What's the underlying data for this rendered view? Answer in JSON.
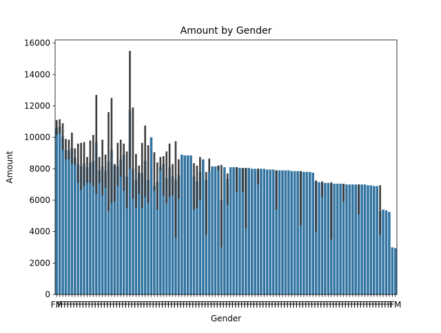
{
  "chart_data": {
    "type": "bar",
    "title": "Amount by Gender",
    "xlabel": "Gender",
    "ylabel": "Amount",
    "ylim": [
      0,
      16200
    ],
    "yticks": [
      0,
      2000,
      4000,
      6000,
      8000,
      10000,
      12000,
      14000,
      16000
    ],
    "grid": false,
    "legend": "none",
    "bar_color": "#3274a1",
    "errorbar_color": "#3b3b3b",
    "tick_label_prefix": "FM",
    "tick_label_suffix": "FM",
    "bars": [
      {
        "value": 10600,
        "err": [
          10150,
          11100
        ]
      },
      {
        "value": 10700,
        "err": [
          10250,
          11150
        ]
      },
      {
        "value": 10050,
        "err": [
          9200,
          10900
        ]
      },
      {
        "value": 9200,
        "err": [
          8600,
          9900
        ]
      },
      {
        "value": 9150,
        "err": [
          8600,
          9850
        ]
      },
      {
        "value": 9300,
        "err": [
          8300,
          10300
        ]
      },
      {
        "value": 8700,
        "err": [
          8250,
          9300
        ]
      },
      {
        "value": 8300,
        "err": [
          7100,
          9600
        ]
      },
      {
        "value": 8150,
        "err": [
          6650,
          9650
        ]
      },
      {
        "value": 8350,
        "err": [
          6900,
          9700
        ]
      },
      {
        "value": 8100,
        "err": [
          7100,
          8750
        ]
      },
      {
        "value": 8400,
        "err": [
          7100,
          9800
        ]
      },
      {
        "value": 8500,
        "err": [
          6900,
          10150
        ]
      },
      {
        "value": 9700,
        "err": [
          6400,
          12700
        ]
      },
      {
        "value": 7900,
        "err": [
          7100,
          8750
        ]
      },
      {
        "value": 8150,
        "err": [
          6300,
          9850
        ]
      },
      {
        "value": 7850,
        "err": [
          6800,
          8900
        ]
      },
      {
        "value": 8450,
        "err": [
          5300,
          11600
        ]
      },
      {
        "value": 9200,
        "err": [
          5800,
          12500
        ]
      },
      {
        "value": 8200,
        "err": [
          5900,
          8300
        ]
      },
      {
        "value": 8150,
        "err": [
          6900,
          9650
        ]
      },
      {
        "value": 8600,
        "err": [
          7500,
          9850
        ]
      },
      {
        "value": 8900,
        "err": [
          6600,
          9600
        ]
      },
      {
        "value": 7500,
        "err": [
          5500,
          9100
        ]
      },
      {
        "value": 11750,
        "err": [
          8000,
          15500
        ]
      },
      {
        "value": 8000,
        "err": [
          6100,
          11900
        ]
      },
      {
        "value": 7300,
        "err": [
          5500,
          8950
        ]
      },
      {
        "value": 7750,
        "err": [
          6400,
          8200
        ]
      },
      {
        "value": 7700,
        "err": [
          5500,
          9650
        ]
      },
      {
        "value": 8500,
        "err": [
          6200,
          10750
        ]
      },
      {
        "value": 7300,
        "err": [
          5800,
          9500
        ]
      },
      {
        "value": 10000,
        "err": [
          10000,
          10000
        ]
      },
      {
        "value": 6900,
        "err": [
          6600,
          9050
        ]
      },
      {
        "value": 7150,
        "err": [
          5400,
          8400
        ]
      },
      {
        "value": 8100,
        "err": [
          7900,
          8750
        ]
      },
      {
        "value": 8300,
        "err": [
          6300,
          8800
        ]
      },
      {
        "value": 7400,
        "err": [
          5800,
          9100
        ]
      },
      {
        "value": 8100,
        "err": [
          6200,
          9600
        ]
      },
      {
        "value": 7500,
        "err": [
          6300,
          8300
        ]
      },
      {
        "value": 7300,
        "err": [
          3600,
          9750
        ]
      },
      {
        "value": 7600,
        "err": [
          6100,
          8600
        ]
      },
      {
        "value": 8900,
        "err": [
          8900,
          8900
        ]
      },
      {
        "value": 8850,
        "err": [
          8850,
          8850
        ]
      },
      {
        "value": 8850,
        "err": [
          8850,
          8850
        ]
      },
      {
        "value": 8850,
        "err": [
          8850,
          8850
        ]
      },
      {
        "value": 7500,
        "err": [
          5400,
          8350
        ]
      },
      {
        "value": 7200,
        "err": [
          5500,
          8200
        ]
      },
      {
        "value": 7800,
        "err": [
          6000,
          8750
        ]
      },
      {
        "value": 8600,
        "err": [
          8600,
          8600
        ]
      },
      {
        "value": 7300,
        "err": [
          3800,
          7800
        ]
      },
      {
        "value": 7800,
        "err": [
          7800,
          8650
        ]
      },
      {
        "value": 8150,
        "err": [
          8150,
          8150
        ]
      },
      {
        "value": 8150,
        "err": [
          8150,
          8150
        ]
      },
      {
        "value": 8200,
        "err": [
          7900,
          8200
        ]
      },
      {
        "value": 6000,
        "err": [
          3000,
          8250
        ]
      },
      {
        "value": 8100,
        "err": [
          8100,
          8100
        ]
      },
      {
        "value": 7350,
        "err": [
          5700,
          7700
        ]
      },
      {
        "value": 8100,
        "err": [
          8100,
          8100
        ]
      },
      {
        "value": 8100,
        "err": [
          8100,
          8100
        ]
      },
      {
        "value": 8100,
        "err": [
          6500,
          8100
        ]
      },
      {
        "value": 8050,
        "err": [
          8050,
          8050
        ]
      },
      {
        "value": 8050,
        "err": [
          6500,
          8050
        ]
      },
      {
        "value": 8050,
        "err": [
          4200,
          8050
        ]
      },
      {
        "value": 8050,
        "err": [
          8050,
          8050
        ]
      },
      {
        "value": 8000,
        "err": [
          8000,
          8000
        ]
      },
      {
        "value": 8000,
        "err": [
          8000,
          8000
        ]
      },
      {
        "value": 8000,
        "err": [
          7000,
          8000
        ]
      },
      {
        "value": 8000,
        "err": [
          8000,
          8000
        ]
      },
      {
        "value": 8000,
        "err": [
          8000,
          8000
        ]
      },
      {
        "value": 7950,
        "err": [
          7950,
          7950
        ]
      },
      {
        "value": 7950,
        "err": [
          7950,
          7950
        ]
      },
      {
        "value": 7950,
        "err": [
          7950,
          7950
        ]
      },
      {
        "value": 7900,
        "err": [
          5400,
          7900
        ]
      },
      {
        "value": 7900,
        "err": [
          7900,
          7900
        ]
      },
      {
        "value": 7900,
        "err": [
          7900,
          7900
        ]
      },
      {
        "value": 7900,
        "err": [
          7900,
          7900
        ]
      },
      {
        "value": 7900,
        "err": [
          7900,
          7900
        ]
      },
      {
        "value": 7850,
        "err": [
          7850,
          7850
        ]
      },
      {
        "value": 7850,
        "err": [
          7850,
          7850
        ]
      },
      {
        "value": 7850,
        "err": [
          7850,
          7850
        ]
      },
      {
        "value": 7850,
        "err": [
          4400,
          7850
        ]
      },
      {
        "value": 7800,
        "err": [
          7800,
          7800
        ]
      },
      {
        "value": 7800,
        "err": [
          7800,
          7800
        ]
      },
      {
        "value": 7800,
        "err": [
          7800,
          7800
        ]
      },
      {
        "value": 7750,
        "err": [
          7750,
          7750
        ]
      },
      {
        "value": 7200,
        "err": [
          4000,
          7250
        ]
      },
      {
        "value": 7150,
        "err": [
          7150,
          7150
        ]
      },
      {
        "value": 7100,
        "err": [
          6200,
          7200
        ]
      },
      {
        "value": 7100,
        "err": [
          7100,
          7100
        ]
      },
      {
        "value": 7100,
        "err": [
          7100,
          7100
        ]
      },
      {
        "value": 7050,
        "err": [
          3500,
          7150
        ]
      },
      {
        "value": 7050,
        "err": [
          7050,
          7050
        ]
      },
      {
        "value": 7050,
        "err": [
          7050,
          7050
        ]
      },
      {
        "value": 7050,
        "err": [
          7050,
          7050
        ]
      },
      {
        "value": 7050,
        "err": [
          5900,
          7050
        ]
      },
      {
        "value": 7000,
        "err": [
          7000,
          7000
        ]
      },
      {
        "value": 7000,
        "err": [
          7000,
          7000
        ]
      },
      {
        "value": 7000,
        "err": [
          7000,
          7000
        ]
      },
      {
        "value": 7000,
        "err": [
          7000,
          7000
        ]
      },
      {
        "value": 7000,
        "err": [
          5100,
          7000
        ]
      },
      {
        "value": 7000,
        "err": [
          7000,
          7000
        ]
      },
      {
        "value": 7000,
        "err": [
          7000,
          7000
        ]
      },
      {
        "value": 6950,
        "err": [
          6950,
          6950
        ]
      },
      {
        "value": 6950,
        "err": [
          6950,
          6950
        ]
      },
      {
        "value": 6900,
        "err": [
          6900,
          6900
        ]
      },
      {
        "value": 6900,
        "err": [
          6900,
          6900
        ]
      },
      {
        "value": 5300,
        "err": [
          3800,
          6950
        ]
      },
      {
        "value": 5400,
        "err": [
          5400,
          5400
        ]
      },
      {
        "value": 5350,
        "err": [
          5350,
          5350
        ]
      },
      {
        "value": 5250,
        "err": [
          5250,
          5250
        ]
      },
      {
        "value": 3000,
        "err": [
          3000,
          3000
        ]
      },
      {
        "value": 2950,
        "err": [
          2950,
          2950
        ]
      }
    ]
  }
}
